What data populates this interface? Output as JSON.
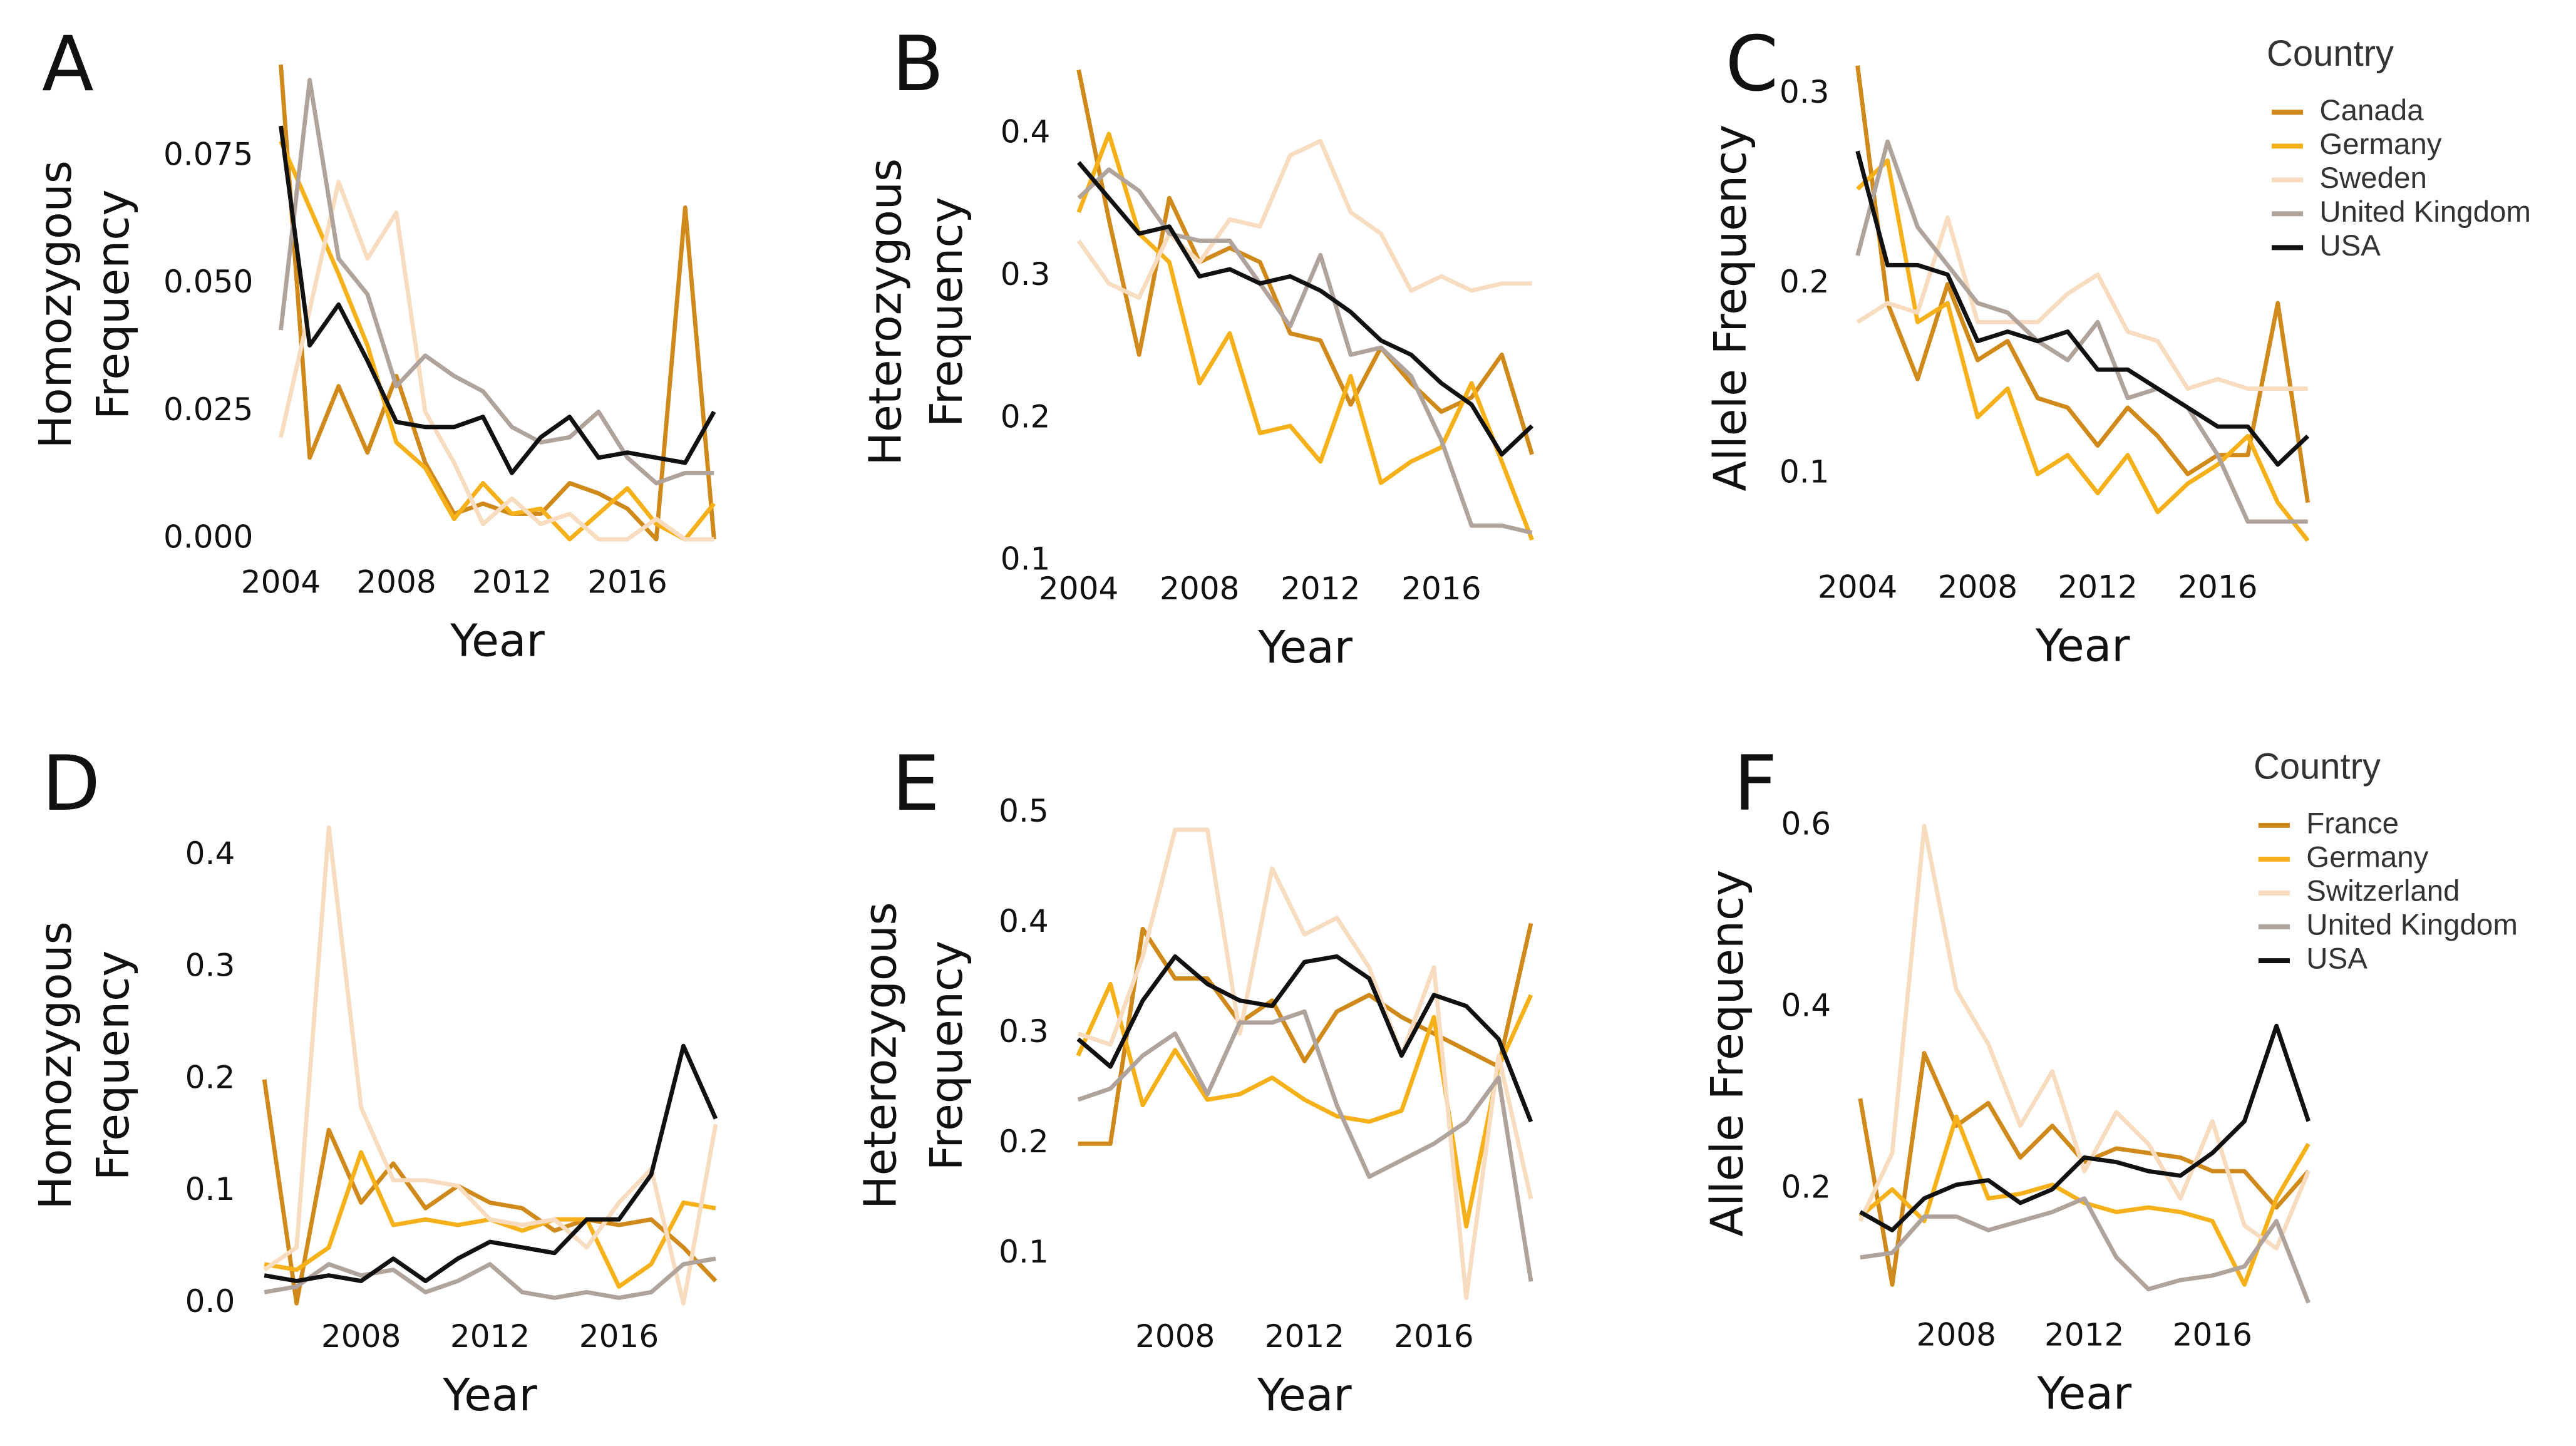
{
  "chart_data": [
    {
      "type": "line",
      "panel_label": "A",
      "ylabel": [
        "Homozygous",
        "Frequency"
      ],
      "xlabel": "Year",
      "x": [
        2004,
        2005,
        2006,
        2007,
        2008,
        2009,
        2010,
        2011,
        2012,
        2013,
        2014,
        2015,
        2016,
        2017,
        2018,
        2019
      ],
      "xlim": [
        2003.5,
        2019.5
      ],
      "xticks": [
        2004,
        2008,
        2012,
        2016
      ],
      "ylim": [
        -0.003,
        0.095
      ],
      "yticks": [
        {
          "value": 0,
          "label": "0.000"
        },
        {
          "value": 0.025,
          "label": "0.025"
        },
        {
          "value": 0.05,
          "label": "0.050"
        },
        {
          "value": 0.075,
          "label": "0.075"
        }
      ],
      "series": [
        {
          "color": "#d08a1b",
          "values": [
            0.093,
            0.016,
            0.03,
            0.017,
            0.032,
            0.015,
            0.005,
            0.007,
            0.005,
            0.005,
            0.011,
            0.009,
            0.006,
            0.0,
            0.065,
            0.0
          ]
        },
        {
          "color": "#f5b01a",
          "values": [
            0.078,
            0.065,
            0.052,
            0.038,
            0.019,
            0.014,
            0.004,
            0.011,
            0.005,
            0.006,
            0.0,
            0.005,
            0.01,
            0.003,
            0.0,
            0.007
          ]
        },
        {
          "color": "#f7dcc0",
          "values": [
            0.02,
            0.045,
            0.07,
            0.055,
            0.064,
            0.025,
            0.015,
            0.003,
            0.008,
            0.003,
            0.005,
            0.0,
            0.0,
            0.004,
            0.0,
            0.0
          ]
        },
        {
          "color": "#b0a39b",
          "values": [
            0.041,
            0.09,
            0.055,
            0.048,
            0.03,
            0.036,
            0.032,
            0.029,
            0.022,
            0.019,
            0.02,
            0.025,
            0.016,
            0.011,
            0.013,
            0.013
          ]
        },
        {
          "color": "#111111",
          "values": [
            0.081,
            0.038,
            0.046,
            0.035,
            0.023,
            0.022,
            0.022,
            0.024,
            0.013,
            0.02,
            0.024,
            0.016,
            0.017,
            0.016,
            0.015,
            0.025
          ]
        }
      ]
    },
    {
      "type": "line",
      "panel_label": "B",
      "ylabel": [
        "Heterozygous",
        "Frequency"
      ],
      "xlabel": "Year",
      "x": [
        2004,
        2005,
        2006,
        2007,
        2008,
        2009,
        2010,
        2011,
        2012,
        2013,
        2014,
        2015,
        2016,
        2017,
        2018,
        2019
      ],
      "xlim": [
        2003.5,
        2019.5
      ],
      "xticks": [
        2004,
        2008,
        2012,
        2016
      ],
      "ylim": [
        0.1,
        0.45
      ],
      "yticks": [
        0.1,
        0.2,
        0.3,
        0.4
      ],
      "series": [
        {
          "color": "#d08a1b",
          "values": [
            0.445,
            0.34,
            0.245,
            0.355,
            0.31,
            0.32,
            0.31,
            0.26,
            0.255,
            0.21,
            0.25,
            0.225,
            0.205,
            0.215,
            0.245,
            0.175
          ]
        },
        {
          "color": "#f5b01a",
          "values": [
            0.345,
            0.4,
            0.33,
            0.31,
            0.225,
            0.26,
            0.19,
            0.195,
            0.17,
            0.23,
            0.155,
            0.17,
            0.18,
            0.225,
            0.17,
            0.115
          ]
        },
        {
          "color": "#f7dcc0",
          "values": [
            0.325,
            0.295,
            0.285,
            0.33,
            0.31,
            0.34,
            0.335,
            0.385,
            0.395,
            0.345,
            0.33,
            0.29,
            0.3,
            0.29,
            0.295,
            0.295
          ]
        },
        {
          "color": "#b0a39b",
          "values": [
            0.355,
            0.375,
            0.36,
            0.33,
            0.325,
            0.325,
            0.295,
            0.265,
            0.315,
            0.245,
            0.25,
            0.23,
            0.185,
            0.125,
            0.125,
            0.12
          ]
        },
        {
          "color": "#111111",
          "values": [
            0.38,
            0.355,
            0.33,
            0.335,
            0.3,
            0.305,
            0.295,
            0.3,
            0.29,
            0.275,
            0.255,
            0.245,
            0.225,
            0.21,
            0.175,
            0.195
          ]
        }
      ]
    },
    {
      "type": "line",
      "panel_label": "C",
      "ylabel": [
        "Allele Frequency"
      ],
      "xlabel": "Year",
      "legend_title": "Country",
      "x": [
        2004,
        2005,
        2006,
        2007,
        2008,
        2009,
        2010,
        2011,
        2012,
        2013,
        2014,
        2015,
        2016,
        2017,
        2018,
        2019
      ],
      "xlim": [
        2003.5,
        2019.5
      ],
      "xticks": [
        2004,
        2008,
        2012,
        2016
      ],
      "ylim": [
        0.055,
        0.32
      ],
      "yticks": [
        0.1,
        0.2,
        0.3
      ],
      "series": [
        {
          "name": "Canada",
          "color": "#d08a1b",
          "values": [
            0.315,
            0.19,
            0.15,
            0.2,
            0.16,
            0.17,
            0.14,
            0.135,
            0.115,
            0.135,
            0.12,
            0.1,
            0.11,
            0.11,
            0.19,
            0.085
          ]
        },
        {
          "name": "Germany",
          "color": "#f5b01a",
          "values": [
            0.25,
            0.265,
            0.18,
            0.19,
            0.13,
            0.145,
            0.1,
            0.11,
            0.09,
            0.11,
            0.08,
            0.095,
            0.105,
            0.12,
            0.085,
            0.065
          ]
        },
        {
          "name": "Sweden",
          "color": "#f7dcc0",
          "values": [
            0.18,
            0.19,
            0.185,
            0.235,
            0.18,
            0.18,
            0.18,
            0.195,
            0.205,
            0.175,
            0.17,
            0.145,
            0.15,
            0.145,
            0.145,
            0.145
          ]
        },
        {
          "name": "United Kingdom",
          "color": "#b0a39b",
          "values": [
            0.215,
            0.275,
            0.23,
            0.21,
            0.19,
            0.185,
            0.17,
            0.16,
            0.18,
            0.14,
            0.145,
            0.135,
            0.11,
            0.075,
            0.075,
            0.075
          ]
        },
        {
          "name": "USA",
          "color": "#111111",
          "values": [
            0.27,
            0.21,
            0.21,
            0.205,
            0.17,
            0.175,
            0.17,
            0.175,
            0.155,
            0.155,
            0.145,
            0.135,
            0.125,
            0.125,
            0.105,
            0.12
          ]
        }
      ]
    },
    {
      "type": "line",
      "panel_label": "D",
      "ylabel": [
        "Homozygous",
        "Frequency"
      ],
      "xlabel": "Year",
      "x": [
        2005,
        2006,
        2007,
        2008,
        2009,
        2010,
        2011,
        2012,
        2013,
        2014,
        2015,
        2016,
        2017,
        2018,
        2019
      ],
      "xlim": [
        2004.5,
        2019.5
      ],
      "xticks": [
        2008,
        2012,
        2016
      ],
      "ylim": [
        -0.005,
        0.43
      ],
      "yticks": [
        {
          "value": 0,
          "label": "0.0"
        },
        0.1,
        0.2,
        0.3,
        0.4
      ],
      "series": [
        {
          "color": "#d08a1b",
          "values": [
            0.2,
            0.0,
            0.155,
            0.09,
            0.125,
            0.085,
            0.105,
            0.09,
            0.085,
            0.065,
            0.075,
            0.07,
            0.075,
            0.05,
            0.02
          ]
        },
        {
          "color": "#f5b01a",
          "values": [
            0.035,
            0.03,
            0.05,
            0.135,
            0.07,
            0.075,
            0.07,
            0.075,
            0.065,
            0.075,
            0.075,
            0.015,
            0.035,
            0.09,
            0.085
          ]
        },
        {
          "color": "#f7dcc0",
          "values": [
            0.03,
            0.05,
            0.425,
            0.175,
            0.11,
            0.11,
            0.105,
            0.075,
            0.07,
            0.075,
            0.05,
            0.09,
            0.12,
            0.0,
            0.16
          ]
        },
        {
          "color": "#b0a39b",
          "values": [
            0.01,
            0.015,
            0.035,
            0.025,
            0.03,
            0.01,
            0.02,
            0.035,
            0.01,
            0.005,
            0.01,
            0.005,
            0.01,
            0.035,
            0.04
          ]
        },
        {
          "color": "#111111",
          "values": [
            0.025,
            0.02,
            0.025,
            0.02,
            0.04,
            0.02,
            0.04,
            0.055,
            0.05,
            0.045,
            0.075,
            0.075,
            0.115,
            0.23,
            0.165
          ]
        }
      ]
    },
    {
      "type": "line",
      "panel_label": "E",
      "ylabel": [
        "Heterozygous",
        "Frequency"
      ],
      "xlabel": "Year",
      "x": [
        2005,
        2006,
        2007,
        2008,
        2009,
        2010,
        2011,
        2012,
        2013,
        2014,
        2015,
        2016,
        2017,
        2018,
        2019
      ],
      "xlim": [
        2004.5,
        2019.5
      ],
      "xticks": [
        2008,
        2012,
        2016
      ],
      "ylim": [
        0.05,
        0.51
      ],
      "yticks": [
        0.1,
        0.2,
        0.3,
        0.4,
        0.5
      ],
      "series": [
        {
          "color": "#d08a1b",
          "values": [
            0.2,
            0.2,
            0.395,
            0.35,
            0.35,
            0.31,
            0.33,
            0.275,
            0.32,
            0.335,
            0.315,
            0.3,
            0.285,
            0.27,
            0.4
          ]
        },
        {
          "color": "#f5b01a",
          "values": [
            0.28,
            0.345,
            0.235,
            0.285,
            0.24,
            0.245,
            0.26,
            0.24,
            0.225,
            0.22,
            0.23,
            0.315,
            0.125,
            0.27,
            0.335
          ]
        },
        {
          "color": "#f7dcc0",
          "values": [
            0.3,
            0.29,
            0.37,
            0.485,
            0.485,
            0.3,
            0.45,
            0.39,
            0.405,
            0.36,
            0.28,
            0.36,
            0.06,
            0.28,
            0.15
          ]
        },
        {
          "color": "#b0a39b",
          "values": [
            0.24,
            0.25,
            0.28,
            0.3,
            0.245,
            0.31,
            0.31,
            0.32,
            0.235,
            0.17,
            0.185,
            0.2,
            0.22,
            0.26,
            0.075
          ]
        },
        {
          "color": "#111111",
          "values": [
            0.295,
            0.27,
            0.33,
            0.37,
            0.345,
            0.33,
            0.325,
            0.365,
            0.37,
            0.35,
            0.28,
            0.335,
            0.325,
            0.295,
            0.22
          ]
        }
      ]
    },
    {
      "type": "line",
      "panel_label": "F",
      "ylabel": [
        "Allele Frequency"
      ],
      "xlabel": "Year",
      "legend_title": "Country",
      "x": [
        2005,
        2006,
        2007,
        2008,
        2009,
        2010,
        2011,
        2012,
        2013,
        2014,
        2015,
        2016,
        2017,
        2018,
        2019
      ],
      "xlim": [
        2004.5,
        2019.5
      ],
      "xticks": [
        2008,
        2012,
        2016
      ],
      "ylim": [
        0.07,
        0.63
      ],
      "yticks": [
        0.2,
        0.4,
        0.6
      ],
      "series": [
        {
          "name": "France",
          "color": "#d08a1b",
          "values": [
            0.3,
            0.095,
            0.35,
            0.27,
            0.295,
            0.235,
            0.27,
            0.23,
            0.245,
            0.24,
            0.235,
            0.22,
            0.22,
            0.18,
            0.22
          ]
        },
        {
          "name": "Germany",
          "color": "#f5b01a",
          "values": [
            0.17,
            0.2,
            0.165,
            0.28,
            0.19,
            0.195,
            0.205,
            0.185,
            0.175,
            0.18,
            0.175,
            0.165,
            0.095,
            0.19,
            0.25
          ]
        },
        {
          "name": "Switzerland",
          "color": "#f7dcc0",
          "values": [
            0.165,
            0.24,
            0.6,
            0.42,
            0.36,
            0.27,
            0.33,
            0.22,
            0.285,
            0.25,
            0.19,
            0.275,
            0.16,
            0.135,
            0.22
          ]
        },
        {
          "name": "United Kingdom",
          "color": "#b0a39b",
          "values": [
            0.125,
            0.13,
            0.17,
            0.17,
            0.155,
            0.165,
            0.175,
            0.19,
            0.125,
            0.09,
            0.1,
            0.105,
            0.115,
            0.165,
            0.075
          ]
        },
        {
          "name": "USA",
          "color": "#111111",
          "values": [
            0.175,
            0.155,
            0.19,
            0.205,
            0.21,
            0.185,
            0.2,
            0.235,
            0.23,
            0.22,
            0.215,
            0.24,
            0.275,
            0.38,
            0.275
          ]
        }
      ]
    }
  ]
}
